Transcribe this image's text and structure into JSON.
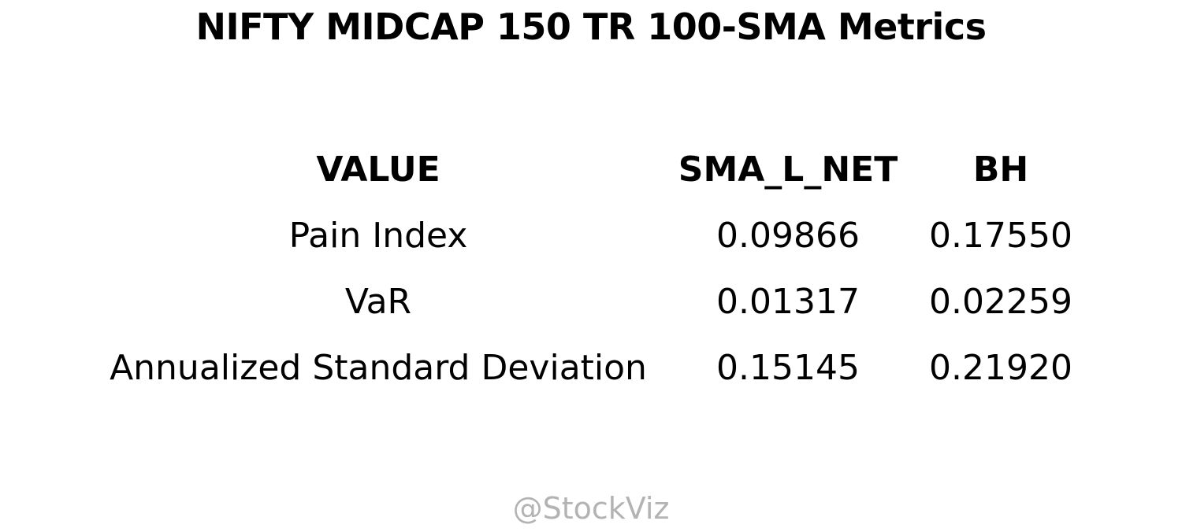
{
  "chart_data": {
    "type": "table",
    "title": "NIFTY MIDCAP 150 TR 100-SMA Metrics",
    "columns": [
      "VALUE",
      "SMA_L_NET",
      "BH"
    ],
    "rows": [
      {
        "metric": "Pain Index",
        "sma_l_net": "0.09866",
        "bh": "0.17550"
      },
      {
        "metric": "VaR",
        "sma_l_net": "0.01317",
        "bh": "0.02259"
      },
      {
        "metric": "Annualized Standard Deviation",
        "sma_l_net": "0.15145",
        "bh": "0.21920"
      }
    ]
  },
  "watermark": "@StockViz",
  "colors": {
    "text": "#000000",
    "watermark": "#b3b3b3",
    "background": "#ffffff"
  }
}
